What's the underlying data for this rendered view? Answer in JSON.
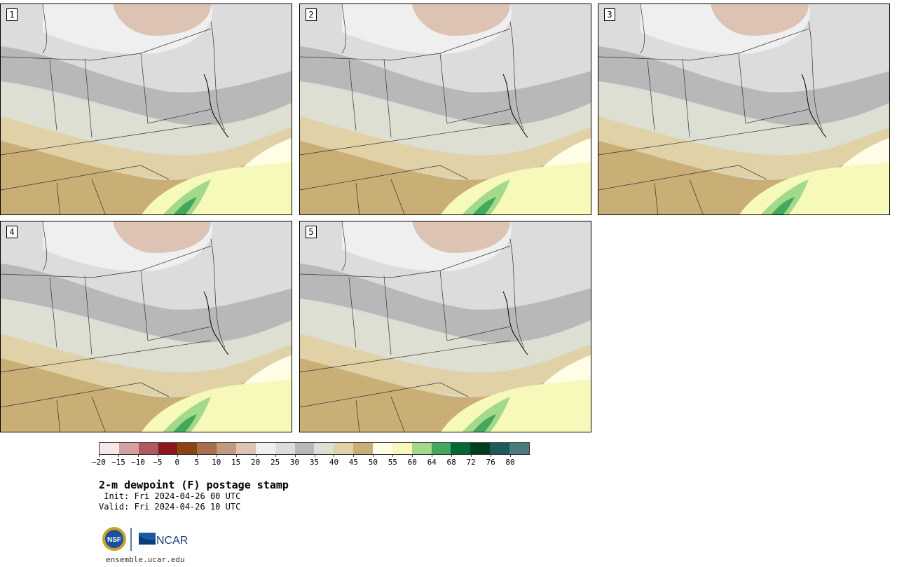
{
  "panels": [
    {
      "label": "1"
    },
    {
      "label": "2"
    },
    {
      "label": "3"
    },
    {
      "label": "4"
    },
    {
      "label": "5"
    }
  ],
  "colorbar": {
    "colors": [
      "#f6e8ea",
      "#d4a0a3",
      "#b05a5e",
      "#8c1620",
      "#8b4513",
      "#a86f4c",
      "#c49a7e",
      "#dcc3b3",
      "#efefef",
      "#dcdcdc",
      "#b8b8b8",
      "#dddfd2",
      "#e0d1a7",
      "#c9ae76",
      "#fffde6",
      "#f6f9b9",
      "#a3d98b",
      "#43a85c",
      "#006837",
      "#003d23",
      "#1d5a5a",
      "#4a7a7c"
    ],
    "ticks": [
      "−20",
      "−15",
      "−10",
      "−5",
      "0",
      "5",
      "10",
      "15",
      "20",
      "25",
      "30",
      "35",
      "40",
      "45",
      "50",
      "55",
      "60",
      "64",
      "68",
      "72",
      "76",
      "80"
    ]
  },
  "title": "2-m dewpoint (F) postage stamp",
  "init": " Init: Fri 2024-04-26 00 UTC",
  "valid": "Valid: Fri 2024-04-26 10 UTC",
  "logos": {
    "left": "NSF",
    "right": "NCAR"
  },
  "site": "ensemble.ucar.edu"
}
